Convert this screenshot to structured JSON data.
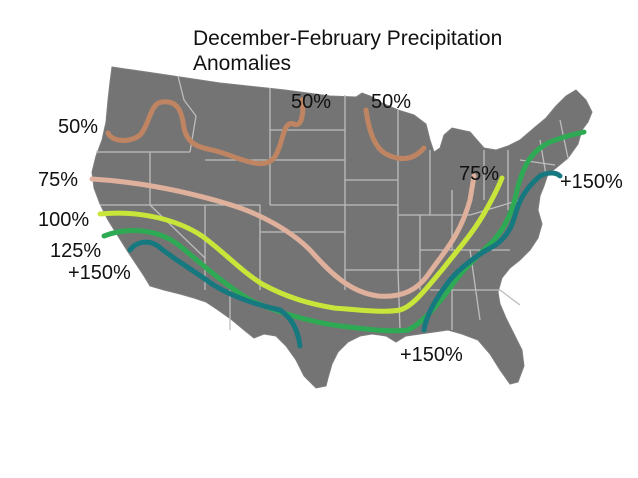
{
  "title_line1": "December-February Precipitation",
  "title_line2": "Anomalies",
  "colors": {
    "land": "#747474",
    "state_borders": "#bdbdbd",
    "c50": "#bf8563",
    "c75": "#dfb09c",
    "c100": "#c8e63a",
    "c125": "#2eaa55",
    "c150": "#16797f"
  },
  "contours": [
    {
      "level": "50%",
      "color_key": "c50",
      "labels": [
        "50%",
        "50%",
        "50%"
      ]
    },
    {
      "level": "75%",
      "color_key": "c75",
      "labels": [
        "75%",
        "75%"
      ]
    },
    {
      "level": "100%",
      "color_key": "c100",
      "labels": [
        "100%"
      ]
    },
    {
      "level": "125%",
      "color_key": "c125",
      "labels": [
        "125%"
      ]
    },
    {
      "level": "+150%",
      "color_key": "c150",
      "labels": [
        "+150%",
        "+150%",
        "+150%"
      ]
    }
  ]
}
